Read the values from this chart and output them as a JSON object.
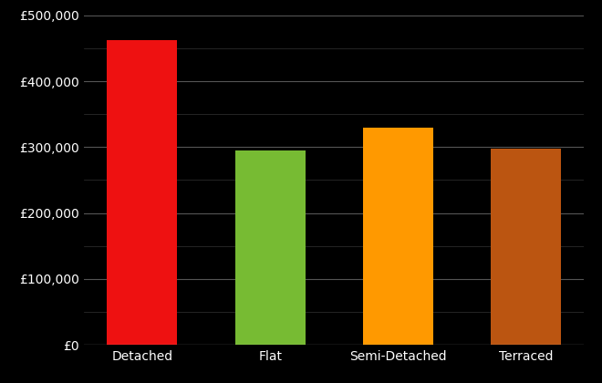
{
  "categories": [
    "Detached",
    "Flat",
    "Semi-Detached",
    "Terraced"
  ],
  "values": [
    462000,
    295000,
    330000,
    298000
  ],
  "bar_colors": [
    "#ee1111",
    "#77bb33",
    "#ff9900",
    "#bb5511"
  ],
  "background_color": "#000000",
  "text_color": "#ffffff",
  "grid_color": "#555555",
  "minor_grid_color": "#333333",
  "ylim": [
    0,
    500000
  ],
  "yticks": [
    0,
    100000,
    200000,
    300000,
    400000,
    500000
  ],
  "minor_ytick_step": 50000,
  "bar_width": 0.55,
  "font_size_y": 10,
  "font_size_x": 10
}
